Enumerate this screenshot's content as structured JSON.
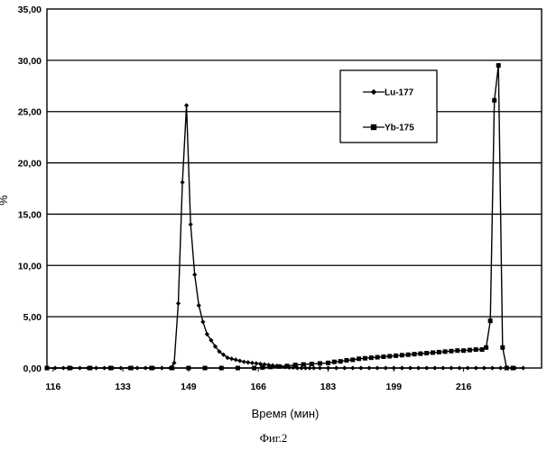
{
  "chart_data": {
    "type": "line",
    "xlabel": "Время (мин)",
    "ylabel": "%",
    "x_tick_labels": [
      "116",
      "133",
      "149",
      "166",
      "183",
      "199",
      "216"
    ],
    "x_tick_values": [
      116,
      133,
      149,
      166,
      183,
      199,
      216
    ],
    "xlim": [
      114.5,
      235
    ],
    "ylim": [
      0,
      35
    ],
    "y_ticks": [
      0,
      5,
      10,
      15,
      20,
      25,
      30,
      35
    ],
    "y_tick_labels": [
      "0,00",
      "5,00",
      "10,00",
      "15,00",
      "20,00",
      "25,00",
      "30,00",
      "35,00"
    ],
    "grid": "horizontal",
    "legend_position": "top-right",
    "series": [
      {
        "name": "Lu-177",
        "marker": "diamond",
        "x": [
          114.5,
          116.5,
          118.5,
          120.5,
          122.5,
          124.5,
          126.5,
          128.5,
          130.5,
          132.5,
          134.5,
          136.5,
          138.5,
          140.5,
          142.5,
          144.5,
          145.5,
          146.5,
          147.5,
          148.5,
          149.5,
          150.5,
          151.5,
          152.5,
          153.5,
          154.5,
          155.5,
          156.5,
          157.5,
          158.5,
          159.5,
          160.5,
          161.5,
          162.5,
          163.5,
          164.5,
          165.5,
          166.5,
          167.5,
          168.5,
          169.5,
          170.5,
          171.5,
          172.5,
          173.5,
          174.5,
          175.5,
          176.5,
          177.5,
          178.5,
          179.5,
          181,
          183,
          185,
          187,
          189,
          191,
          193,
          195,
          197,
          199,
          201,
          203,
          205,
          207,
          209,
          211,
          213,
          215,
          217,
          219,
          221,
          223,
          225,
          226.5,
          228.5,
          230.5
        ],
        "y": [
          0,
          0,
          0,
          0,
          0,
          0,
          0,
          0,
          0,
          0,
          0,
          0,
          0,
          0,
          0,
          0,
          0.5,
          6.3,
          18.1,
          25.6,
          14,
          9.1,
          6.1,
          4.5,
          3.3,
          2.7,
          2.1,
          1.6,
          1.3,
          1.0,
          0.9,
          0.8,
          0.7,
          0.6,
          0.55,
          0.5,
          0.45,
          0.4,
          0.35,
          0.3,
          0.25,
          0.2,
          0.15,
          0.1,
          0.05,
          0.05,
          0,
          0,
          0,
          0,
          0,
          0,
          0,
          0,
          0,
          0,
          0,
          0,
          0,
          0,
          0,
          0,
          0,
          0,
          0,
          0,
          0,
          0,
          0,
          0,
          0,
          0,
          0,
          0,
          0,
          0,
          0
        ]
      },
      {
        "name": "Yb-175",
        "marker": "square",
        "x": [
          114.5,
          120,
          125,
          130,
          135,
          140,
          145,
          149,
          153,
          157,
          161,
          165,
          167,
          169,
          171,
          173,
          175,
          177,
          179,
          181,
          183,
          184.5,
          186,
          187.5,
          189,
          190.5,
          192,
          193.5,
          195,
          196.5,
          198,
          199.5,
          201,
          202.5,
          204,
          205.5,
          207,
          208.5,
          210,
          211.5,
          213,
          214.5,
          216,
          217.5,
          219,
          220.5,
          221.5,
          222.5,
          223.5,
          224.5,
          225.5,
          226.5,
          228
        ],
        "y": [
          0,
          0,
          0,
          0,
          0,
          0,
          0,
          0,
          0,
          0,
          0,
          0,
          0.05,
          0.1,
          0.15,
          0.2,
          0.3,
          0.35,
          0.4,
          0.45,
          0.5,
          0.6,
          0.65,
          0.75,
          0.8,
          0.9,
          0.95,
          1.0,
          1.05,
          1.1,
          1.15,
          1.2,
          1.25,
          1.3,
          1.35,
          1.4,
          1.45,
          1.5,
          1.55,
          1.6,
          1.65,
          1.7,
          1.7,
          1.75,
          1.8,
          1.8,
          2.0,
          4.6,
          26.1,
          29.5,
          2.0,
          0,
          0
        ]
      }
    ]
  },
  "caption": "Фиг.2"
}
